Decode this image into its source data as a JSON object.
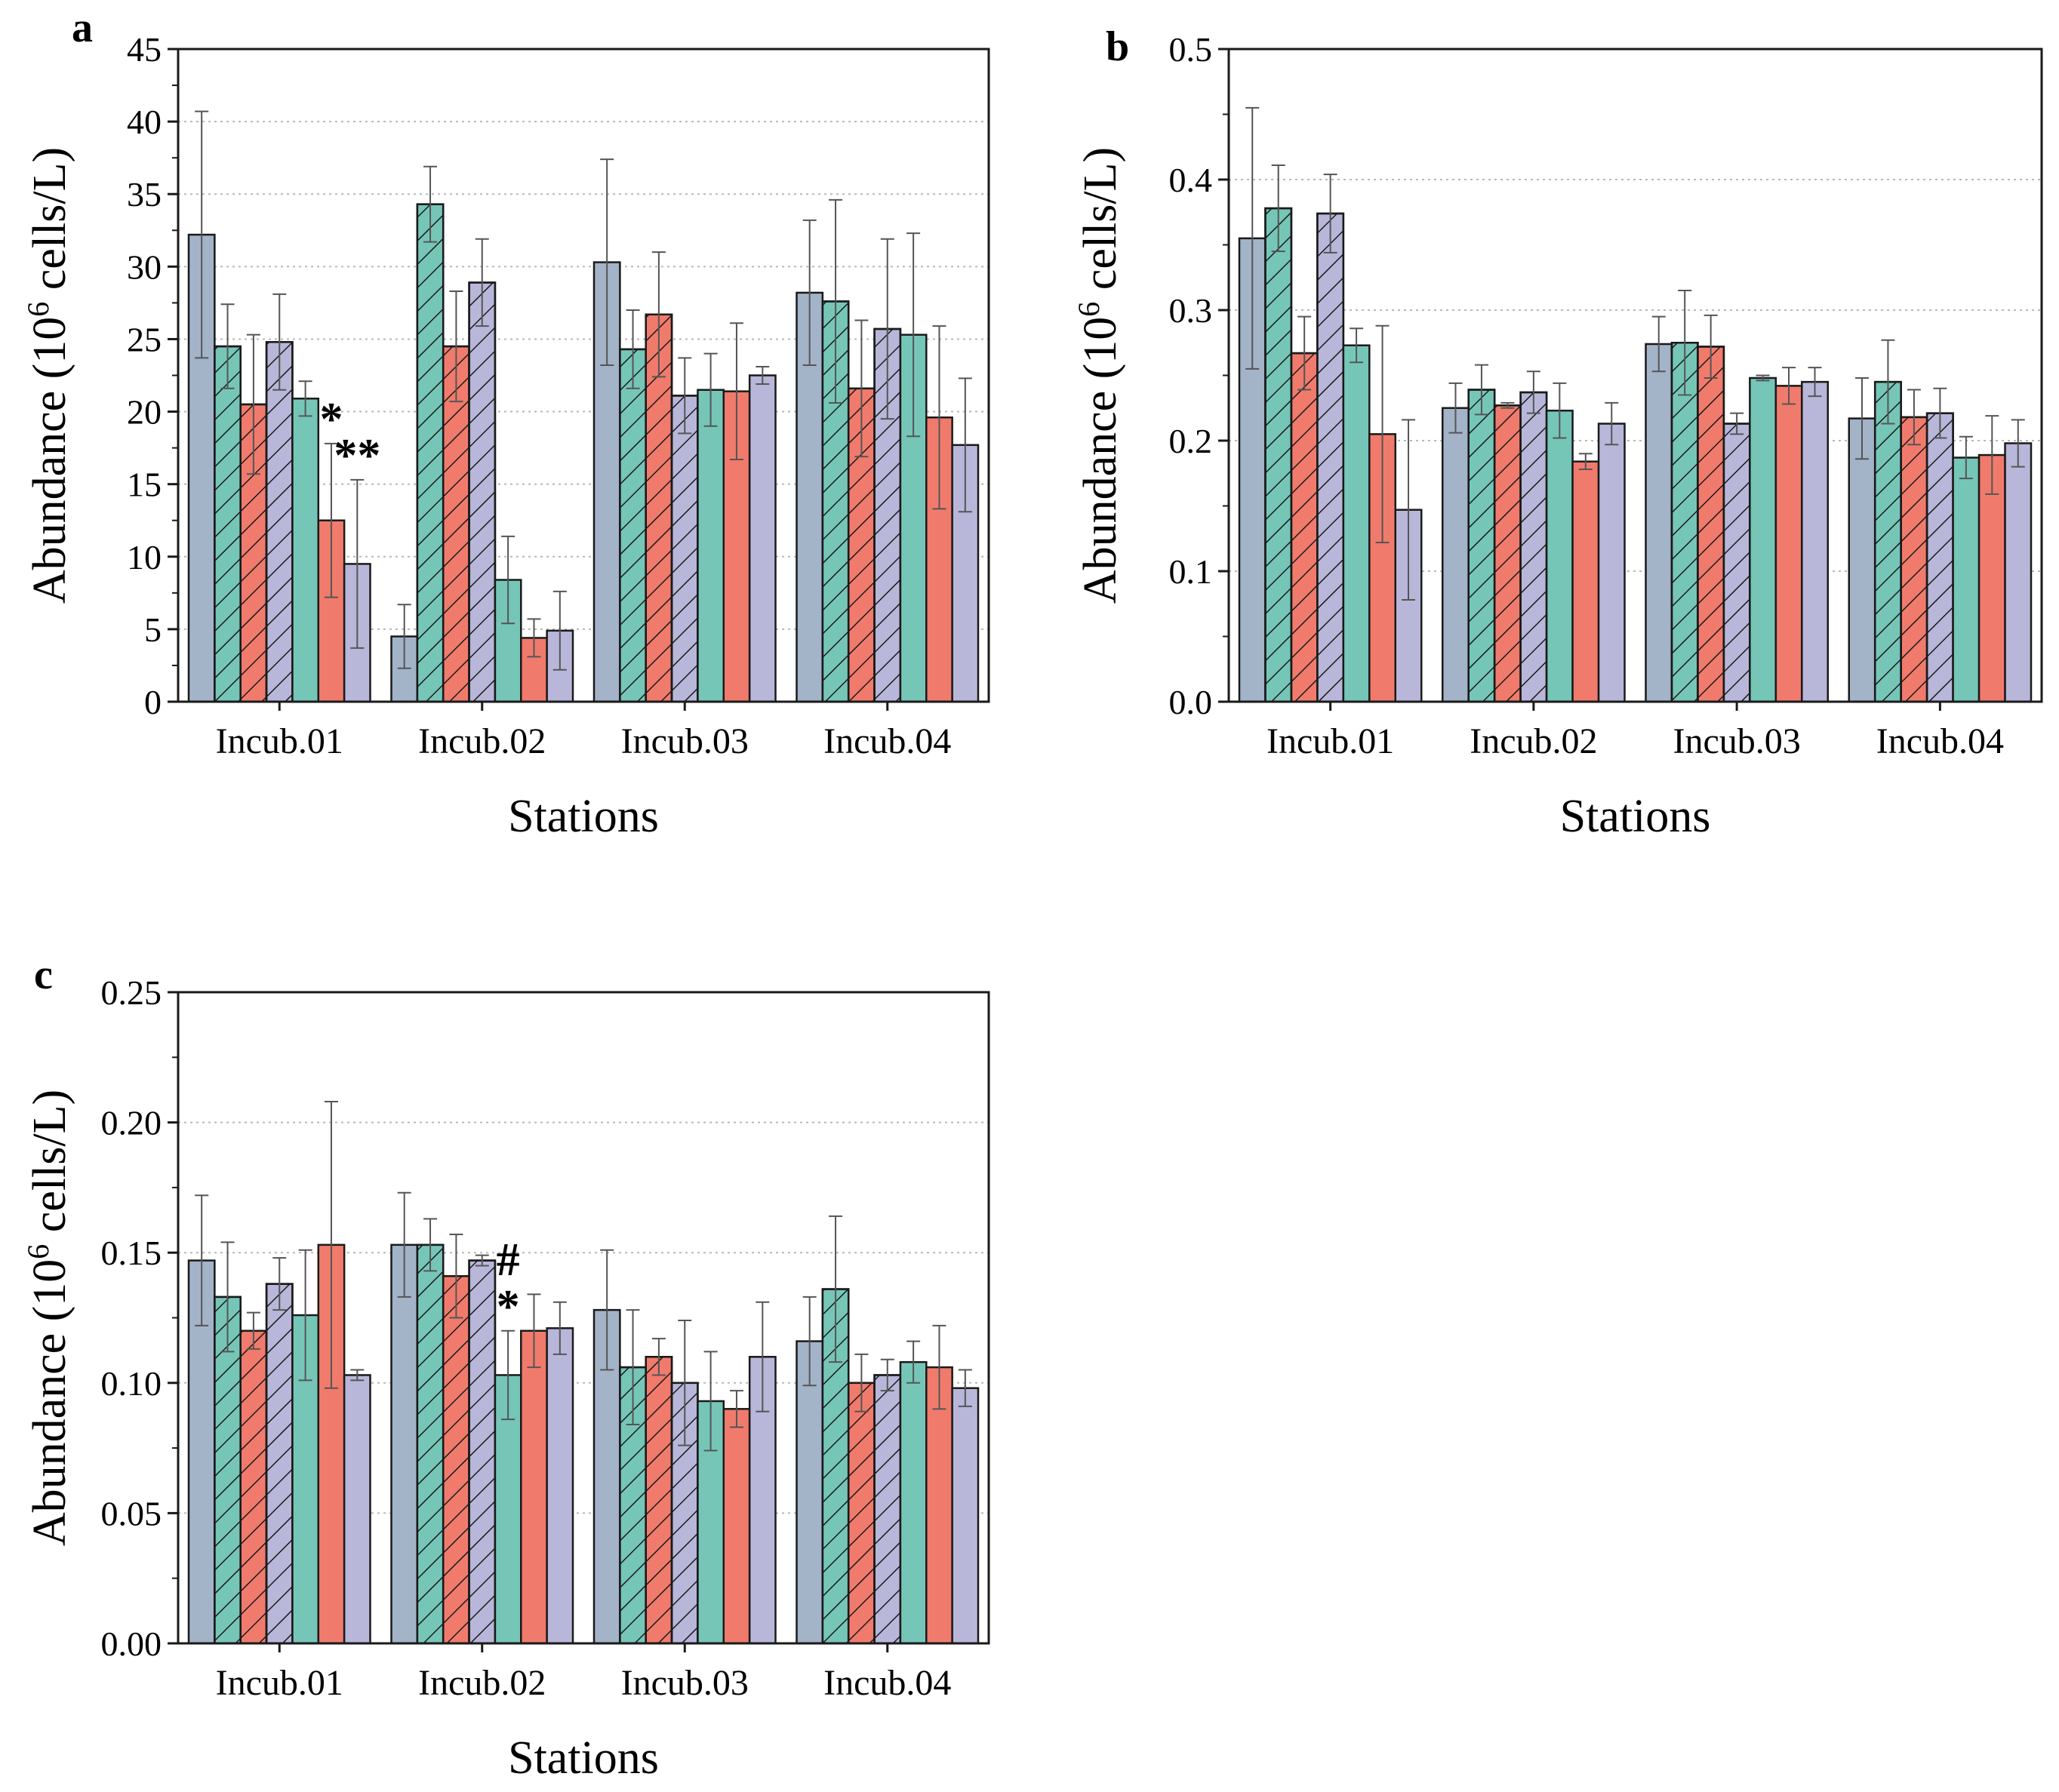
{
  "colors": {
    "blue_gray": "#a3b3c8",
    "teal": "#76c6b8",
    "salmon": "#f07b6c",
    "lavender": "#b8b7da",
    "edge": "#1a1a1a",
    "grid": "#b8b8b8",
    "error": "#555555"
  },
  "series_styles": [
    {
      "color": "blue_gray",
      "hatch": false
    },
    {
      "color": "teal",
      "hatch": true
    },
    {
      "color": "salmon",
      "hatch": true
    },
    {
      "color": "lavender",
      "hatch": true
    },
    {
      "color": "teal",
      "hatch": false
    },
    {
      "color": "salmon",
      "hatch": false
    },
    {
      "color": "lavender",
      "hatch": false
    }
  ],
  "chart_data": [
    {
      "type": "bar",
      "panel": "a",
      "title": "",
      "xlabel": "Stations",
      "ylabel": "Abundance (10^6 cells/L)",
      "ylabel_parts": {
        "pre": "Abundance (10",
        "sup": "6",
        "post": " cells/L)"
      },
      "ylim": [
        0,
        45
      ],
      "yticks": [
        0,
        5,
        10,
        15,
        20,
        25,
        30,
        35,
        40,
        45
      ],
      "ytick_labels": [
        "0",
        "5",
        "10",
        "15",
        "20",
        "25",
        "30",
        "35",
        "40",
        "45"
      ],
      "grid": "horizontal dotted",
      "categories": [
        "Incub.01",
        "Incub.02",
        "Incub.03",
        "Incub.04"
      ],
      "values": [
        [
          32.2,
          24.5,
          20.5,
          24.8,
          20.9,
          12.5,
          9.5
        ],
        [
          4.5,
          34.3,
          24.5,
          28.9,
          8.4,
          4.4,
          4.9
        ],
        [
          30.3,
          24.3,
          26.7,
          21.1,
          21.5,
          21.4,
          22.5
        ],
        [
          28.2,
          27.6,
          21.6,
          25.7,
          25.3,
          19.6,
          17.7
        ]
      ],
      "errors": [
        [
          8.5,
          2.9,
          4.8,
          3.3,
          1.2,
          5.3,
          5.8
        ],
        [
          2.2,
          2.6,
          3.8,
          3.0,
          3.0,
          1.3,
          2.7
        ],
        [
          7.1,
          2.7,
          4.3,
          2.6,
          2.5,
          4.7,
          0.6
        ],
        [
          5.0,
          7.0,
          4.7,
          6.2,
          7.0,
          6.3,
          4.6
        ]
      ],
      "annotations": [
        {
          "text": "*",
          "category": 0,
          "bar": 5
        },
        {
          "text": "**",
          "category": 0,
          "bar": 6
        }
      ]
    },
    {
      "type": "bar",
      "panel": "b",
      "title": "",
      "xlabel": "Stations",
      "ylabel": "Abundance (10^6 cells/L)",
      "ylabel_parts": {
        "pre": "Abundance (10",
        "sup": "6",
        "post": " cells/L)"
      },
      "ylim": [
        0,
        0.5
      ],
      "yticks": [
        0,
        0.1,
        0.2,
        0.3,
        0.4,
        0.5
      ],
      "ytick_labels": [
        "0.0",
        "0.1",
        "0.2",
        "0.3",
        "0.4",
        "0.5"
      ],
      "grid": "horizontal dotted",
      "categories": [
        "Incub.01",
        "Incub.02",
        "Incub.03",
        "Incub.04"
      ],
      "values": [
        [
          0.355,
          0.378,
          0.267,
          0.374,
          0.273,
          0.205,
          0.147
        ],
        [
          0.225,
          0.239,
          0.227,
          0.237,
          0.223,
          0.184,
          0.213
        ],
        [
          0.274,
          0.275,
          0.272,
          0.213,
          0.248,
          0.242,
          0.245
        ],
        [
          0.217,
          0.245,
          0.218,
          0.221,
          0.187,
          0.189,
          0.198
        ]
      ],
      "errors": [
        [
          0.1,
          0.033,
          0.028,
          0.03,
          0.013,
          0.083,
          0.069
        ],
        [
          0.019,
          0.019,
          0.002,
          0.016,
          0.021,
          0.006,
          0.016
        ],
        [
          0.021,
          0.04,
          0.024,
          0.008,
          0.002,
          0.014,
          0.011
        ],
        [
          0.031,
          0.032,
          0.021,
          0.019,
          0.016,
          0.03,
          0.018
        ]
      ],
      "annotations": []
    },
    {
      "type": "bar",
      "panel": "c",
      "title": "",
      "xlabel": "Stations",
      "ylabel": "Abundance (10^6 cells/L)",
      "ylabel_parts": {
        "pre": "Abundance (10",
        "sup": "6",
        "post": " cells/L)"
      },
      "ylim": [
        0,
        0.25
      ],
      "yticks": [
        0,
        0.05,
        0.1,
        0.15,
        0.2,
        0.25
      ],
      "ytick_labels": [
        "0.00",
        "0.05",
        "0.10",
        "0.15",
        "0.20",
        "0.25"
      ],
      "grid": "horizontal dotted",
      "categories": [
        "Incub.01",
        "Incub.02",
        "Incub.03",
        "Incub.04"
      ],
      "values": [
        [
          0.147,
          0.133,
          0.12,
          0.138,
          0.126,
          0.153,
          0.103
        ],
        [
          0.153,
          0.153,
          0.141,
          0.147,
          0.103,
          0.12,
          0.121
        ],
        [
          0.128,
          0.106,
          0.11,
          0.1,
          0.093,
          0.09,
          0.11
        ],
        [
          0.116,
          0.136,
          0.1,
          0.103,
          0.108,
          0.106,
          0.098
        ]
      ],
      "errors": [
        [
          0.025,
          0.021,
          0.007,
          0.01,
          0.025,
          0.055,
          0.002
        ],
        [
          0.02,
          0.01,
          0.016,
          0.002,
          0.017,
          0.014,
          0.01
        ],
        [
          0.023,
          0.022,
          0.007,
          0.024,
          0.019,
          0.007,
          0.021
        ],
        [
          0.017,
          0.028,
          0.011,
          0.006,
          0.008,
          0.016,
          0.007
        ]
      ],
      "annotations": [
        {
          "text": "#",
          "category": 1,
          "bar": 4
        },
        {
          "text": "*",
          "category": 1,
          "bar": 4
        }
      ]
    }
  ]
}
